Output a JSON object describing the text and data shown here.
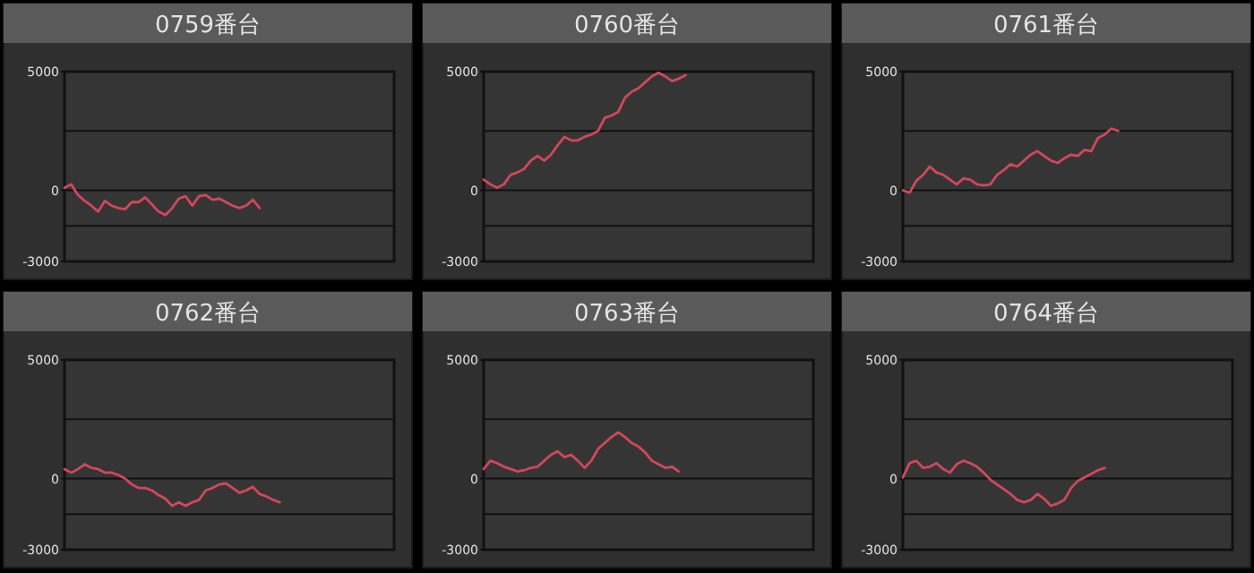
{
  "chart_data": [
    {
      "type": "line",
      "title": "0759番台",
      "color": "#d2475a",
      "ylim": [
        -3000,
        5000
      ],
      "yticks": [
        5000,
        0,
        -3000
      ],
      "grid": "y",
      "tick_labels": "y",
      "ref_lines": [
        {
          "axis": "y",
          "value": 2500,
          "color": "#111111"
        },
        {
          "axis": "y",
          "value": -1500,
          "color": "#111111"
        }
      ],
      "categories": [
        null,
        null,
        null,
        null,
        null,
        null,
        null,
        null,
        null,
        null,
        null,
        null,
        null,
        null,
        null,
        null,
        null,
        null,
        null,
        null,
        null,
        null,
        null,
        null,
        null,
        null,
        null,
        null,
        null,
        null,
        null,
        null,
        null,
        null,
        null,
        null,
        null,
        null,
        null,
        null,
        null,
        null,
        null,
        null,
        null,
        null,
        null,
        null,
        null,
        null
      ],
      "values": [
        100,
        250,
        -200,
        -450,
        -650,
        -900,
        -450,
        -650,
        -750,
        -800,
        -500,
        -500,
        -300,
        -600,
        -900,
        -1050,
        -750,
        -350,
        -250,
        -650,
        -250,
        -200,
        -400,
        -350,
        -500,
        -650,
        -750,
        -650,
        -400,
        -750,
        null,
        null,
        null,
        null,
        null,
        null,
        null,
        null,
        null,
        null,
        null,
        null,
        null,
        null,
        null,
        null,
        null,
        null,
        null,
        null
      ]
    },
    {
      "type": "line",
      "title": "0760番台",
      "color": "#d2475a",
      "ylim": [
        -3000,
        5000
      ],
      "yticks": [
        5000,
        0,
        -3000
      ],
      "grid": "y",
      "tick_labels": "y",
      "ref_lines": [
        {
          "axis": "y",
          "value": 2500,
          "color": "#111111"
        },
        {
          "axis": "y",
          "value": -1500,
          "color": "#111111"
        }
      ],
      "categories": [
        null,
        null,
        null,
        null,
        null,
        null,
        null,
        null,
        null,
        null,
        null,
        null,
        null,
        null,
        null,
        null,
        null,
        null,
        null,
        null,
        null,
        null,
        null,
        null,
        null,
        null,
        null,
        null,
        null,
        null,
        null,
        null,
        null,
        null,
        null,
        null,
        null,
        null,
        null,
        null,
        null,
        null,
        null,
        null,
        null,
        null,
        null,
        null,
        null,
        null
      ],
      "values": [
        450,
        250,
        100,
        250,
        650,
        750,
        900,
        1250,
        1450,
        1250,
        1500,
        1900,
        2250,
        2100,
        2100,
        2250,
        2350,
        2500,
        3050,
        3150,
        3300,
        3900,
        4150,
        4300,
        4550,
        4800,
        4950,
        4800,
        4600,
        4700,
        4850,
        null,
        null,
        null,
        null,
        null,
        null,
        null,
        null,
        null,
        null,
        null,
        null,
        null,
        null,
        null,
        null,
        null,
        null,
        null
      ]
    },
    {
      "type": "line",
      "title": "0761番台",
      "color": "#d2475a",
      "ylim": [
        -3000,
        5000
      ],
      "yticks": [
        5000,
        0,
        -3000
      ],
      "grid": "y",
      "tick_labels": "y",
      "ref_lines": [
        {
          "axis": "y",
          "value": 2500,
          "color": "#111111"
        },
        {
          "axis": "y",
          "value": -1500,
          "color": "#111111"
        }
      ],
      "categories": [
        null,
        null,
        null,
        null,
        null,
        null,
        null,
        null,
        null,
        null,
        null,
        null,
        null,
        null,
        null,
        null,
        null,
        null,
        null,
        null,
        null,
        null,
        null,
        null,
        null,
        null,
        null,
        null,
        null,
        null,
        null,
        null,
        null,
        null,
        null,
        null,
        null,
        null,
        null,
        null,
        null,
        null,
        null,
        null,
        null,
        null,
        null,
        null,
        null,
        null
      ],
      "values": [
        0,
        -100,
        400,
        650,
        1000,
        750,
        650,
        450,
        250,
        500,
        450,
        250,
        200,
        250,
        650,
        850,
        1100,
        1000,
        1250,
        1500,
        1650,
        1450,
        1250,
        1150,
        1350,
        1500,
        1450,
        1700,
        1650,
        2200,
        2350,
        2600,
        2500,
        null,
        null,
        null,
        null,
        null,
        null,
        null,
        null,
        null,
        null,
        null,
        null,
        null,
        null,
        null,
        null,
        null
      ]
    },
    {
      "type": "line",
      "title": "0762番台",
      "color": "#d2475a",
      "ylim": [
        -3000,
        5000
      ],
      "yticks": [
        5000,
        0,
        -3000
      ],
      "grid": "y",
      "tick_labels": "y",
      "ref_lines": [
        {
          "axis": "y",
          "value": 2500,
          "color": "#111111"
        },
        {
          "axis": "y",
          "value": -1500,
          "color": "#111111"
        }
      ],
      "categories": [
        null,
        null,
        null,
        null,
        null,
        null,
        null,
        null,
        null,
        null,
        null,
        null,
        null,
        null,
        null,
        null,
        null,
        null,
        null,
        null,
        null,
        null,
        null,
        null,
        null,
        null,
        null,
        null,
        null,
        null,
        null,
        null,
        null,
        null,
        null,
        null,
        null,
        null,
        null,
        null,
        null,
        null,
        null,
        null,
        null,
        null,
        null,
        null,
        null,
        null
      ],
      "values": [
        400,
        250,
        400,
        600,
        450,
        400,
        250,
        250,
        150,
        0,
        -250,
        -400,
        -400,
        -500,
        -700,
        -850,
        -1150,
        -1000,
        -1150,
        -1000,
        -900,
        -500,
        -400,
        -250,
        -200,
        -400,
        -600,
        -500,
        -350,
        -650,
        -750,
        -900,
        -1000,
        null,
        null,
        null,
        null,
        null,
        null,
        null,
        null,
        null,
        null,
        null,
        null,
        null,
        null,
        null,
        null,
        null
      ]
    },
    {
      "type": "line",
      "title": "0763番台",
      "color": "#d2475a",
      "ylim": [
        -3000,
        5000
      ],
      "yticks": [
        5000,
        0,
        -3000
      ],
      "grid": "y",
      "tick_labels": "y",
      "ref_lines": [
        {
          "axis": "y",
          "value": 2500,
          "color": "#111111"
        },
        {
          "axis": "y",
          "value": -1500,
          "color": "#111111"
        }
      ],
      "categories": [
        null,
        null,
        null,
        null,
        null,
        null,
        null,
        null,
        null,
        null,
        null,
        null,
        null,
        null,
        null,
        null,
        null,
        null,
        null,
        null,
        null,
        null,
        null,
        null,
        null,
        null,
        null,
        null,
        null,
        null,
        null,
        null,
        null,
        null,
        null,
        null,
        null,
        null,
        null,
        null,
        null,
        null,
        null,
        null,
        null,
        null,
        null,
        null,
        null,
        null
      ],
      "values": [
        400,
        750,
        650,
        500,
        400,
        300,
        350,
        450,
        500,
        750,
        1000,
        1150,
        900,
        1000,
        750,
        450,
        750,
        1250,
        1500,
        1750,
        1950,
        1750,
        1500,
        1350,
        1100,
        750,
        600,
        450,
        500,
        300,
        null,
        null,
        null,
        null,
        null,
        null,
        null,
        null,
        null,
        null,
        null,
        null,
        null,
        null,
        null,
        null,
        null,
        null,
        null,
        null
      ]
    },
    {
      "type": "line",
      "title": "0764番台",
      "color": "#d2475a",
      "ylim": [
        -3000,
        5000
      ],
      "yticks": [
        5000,
        0,
        -3000
      ],
      "grid": "y",
      "tick_labels": "y",
      "ref_lines": [
        {
          "axis": "y",
          "value": 2500,
          "color": "#111111"
        },
        {
          "axis": "y",
          "value": -1500,
          "color": "#111111"
        }
      ],
      "categories": [
        null,
        null,
        null,
        null,
        null,
        null,
        null,
        null,
        null,
        null,
        null,
        null,
        null,
        null,
        null,
        null,
        null,
        null,
        null,
        null,
        null,
        null,
        null,
        null,
        null,
        null,
        null,
        null,
        null,
        null,
        null,
        null,
        null,
        null,
        null,
        null,
        null,
        null,
        null,
        null,
        null,
        null,
        null,
        null,
        null,
        null,
        null,
        null,
        null,
        null
      ],
      "values": [
        50,
        650,
        750,
        450,
        500,
        650,
        400,
        250,
        600,
        750,
        650,
        500,
        250,
        -50,
        -250,
        -450,
        -650,
        -900,
        -1000,
        -900,
        -650,
        -850,
        -1150,
        -1050,
        -900,
        -400,
        -100,
        50,
        200,
        350,
        450,
        null,
        null,
        null,
        null,
        null,
        null,
        null,
        null,
        null,
        null,
        null,
        null,
        null,
        null,
        null,
        null,
        null,
        null,
        null
      ]
    }
  ]
}
